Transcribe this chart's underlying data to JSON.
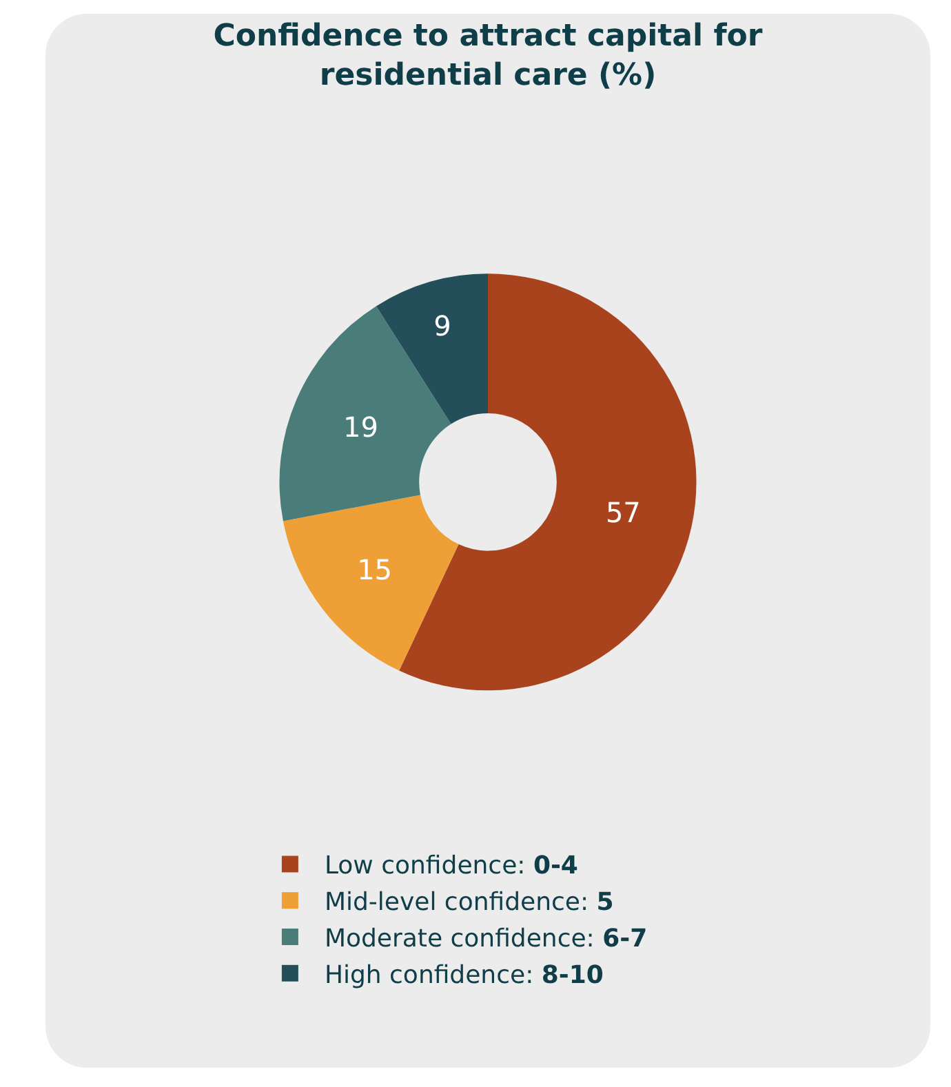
{
  "chart_data": {
    "type": "donut",
    "title": "Confidence to attract capital for residential care (%)",
    "categories": [
      "Low confidence: 0-4",
      "Mid-level confidence: 5",
      "Moderate confidence: 6-7",
      "High confidence: 8-10"
    ],
    "values": [
      57,
      15,
      19,
      9
    ],
    "colors": [
      "#a9431e",
      "#ee9f35",
      "#4a7c7a",
      "#244f5a"
    ],
    "data_labels": true,
    "legend": "bottom"
  }
}
